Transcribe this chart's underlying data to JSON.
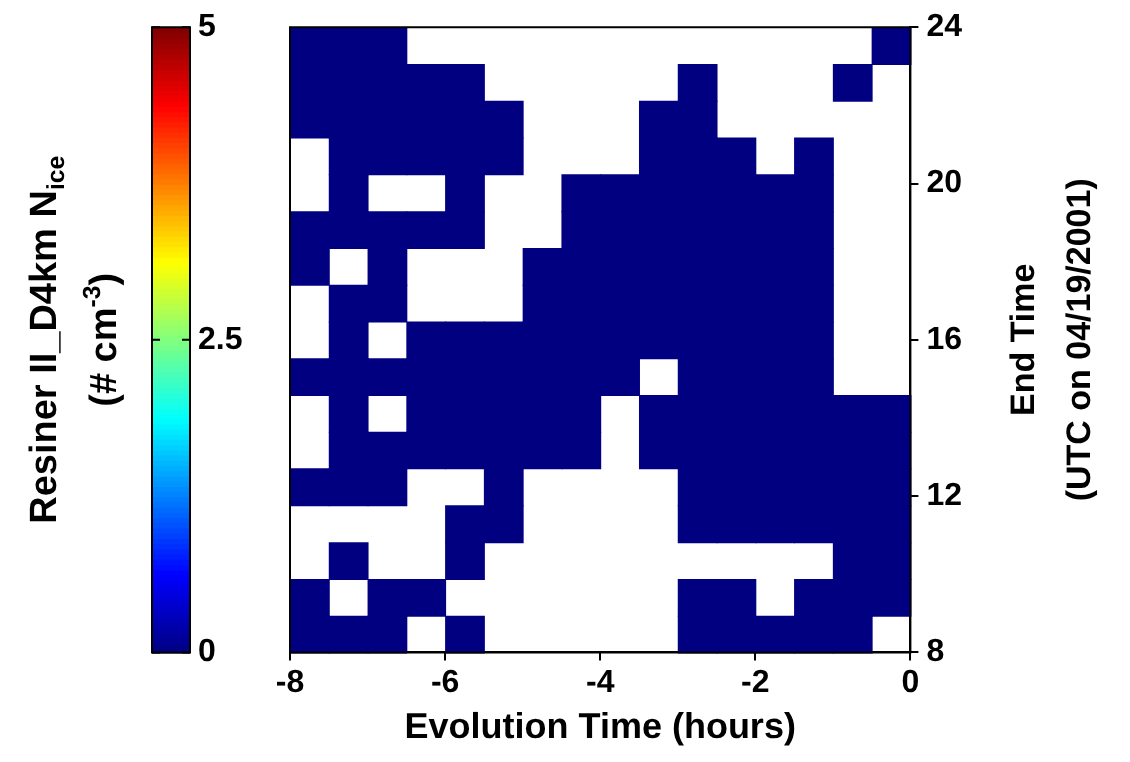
{
  "chart_data": {
    "type": "heatmap",
    "xlabel": "Evolution Time (hours)",
    "ylabel": "End Time\n(UTC on 04/19/2001)",
    "clabel": "Resiner II_D4km N$_{ice}$\n(# cm$^{-3}$)",
    "x": [
      -7.75,
      -7.25,
      -6.75,
      -6.25,
      -5.75,
      -5.25,
      -4.75,
      -4.25,
      -3.75,
      -3.25,
      -2.75,
      -2.25,
      -1.75,
      -1.25,
      -0.75,
      -0.25
    ],
    "y": [
      23.53,
      22.59,
      21.65,
      20.71,
      19.76,
      18.82,
      17.88,
      16.94,
      16.0,
      15.06,
      14.12,
      13.18,
      12.24,
      11.29,
      10.35,
      9.41,
      8.47
    ],
    "xlim": [
      -8,
      0
    ],
    "xticks": [
      -8,
      -6,
      -4,
      -2,
      0
    ],
    "ylim": [
      8,
      24
    ],
    "yticks": [
      8,
      12,
      16,
      20,
      24
    ],
    "clim": [
      0,
      5
    ],
    "cticks": [
      0,
      2.5,
      5
    ],
    "cells": [
      [
        0,
        0,
        0,
        null,
        null,
        null,
        null,
        null,
        null,
        null,
        null,
        null,
        null,
        null,
        null,
        0
      ],
      [
        0,
        0,
        0,
        0,
        0,
        null,
        null,
        null,
        null,
        null,
        0,
        null,
        null,
        null,
        0,
        null
      ],
      [
        0,
        0,
        0,
        0,
        0,
        0,
        null,
        null,
        null,
        0,
        0,
        null,
        null,
        null,
        null,
        null
      ],
      [
        null,
        0,
        0,
        0,
        0,
        0,
        null,
        null,
        null,
        0,
        0,
        0,
        null,
        0,
        null,
        null
      ],
      [
        null,
        0,
        null,
        null,
        0,
        null,
        null,
        0,
        0,
        0,
        0,
        0,
        0,
        0,
        null,
        null
      ],
      [
        0,
        0,
        0,
        0,
        0,
        null,
        null,
        0,
        0,
        0,
        0,
        0,
        0,
        0,
        null,
        null
      ],
      [
        0,
        null,
        0,
        null,
        null,
        null,
        0,
        0,
        0,
        0,
        0,
        0,
        0,
        0,
        null,
        null
      ],
      [
        null,
        0,
        0,
        null,
        null,
        null,
        0,
        0,
        0,
        0,
        0,
        0,
        0,
        0,
        null,
        null
      ],
      [
        null,
        0,
        null,
        0,
        0,
        0,
        0,
        0,
        0,
        0,
        0,
        0,
        0,
        0,
        null,
        null
      ],
      [
        0,
        0,
        0,
        0,
        0,
        0,
        0,
        0,
        0,
        null,
        0,
        0,
        0,
        0,
        null,
        null
      ],
      [
        null,
        0,
        null,
        0,
        0,
        0,
        0,
        0,
        null,
        0,
        0,
        0,
        0,
        0,
        0,
        0
      ],
      [
        null,
        0,
        0,
        0,
        0,
        0,
        0,
        0,
        null,
        0,
        0,
        0,
        0,
        0,
        0,
        0
      ],
      [
        0,
        0,
        0,
        null,
        null,
        0,
        null,
        null,
        null,
        null,
        0,
        0,
        0,
        0,
        0,
        0
      ],
      [
        null,
        null,
        null,
        null,
        0,
        0,
        null,
        null,
        null,
        null,
        0,
        0,
        0,
        0,
        0,
        0
      ],
      [
        null,
        0,
        null,
        null,
        0,
        null,
        null,
        null,
        null,
        null,
        null,
        null,
        null,
        null,
        0,
        0
      ],
      [
        0,
        null,
        0,
        0,
        null,
        null,
        null,
        null,
        null,
        null,
        0,
        0,
        null,
        0,
        0,
        0
      ],
      [
        0,
        0,
        0,
        null,
        0,
        null,
        null,
        null,
        null,
        null,
        0,
        0,
        0,
        0,
        0,
        null
      ]
    ]
  }
}
